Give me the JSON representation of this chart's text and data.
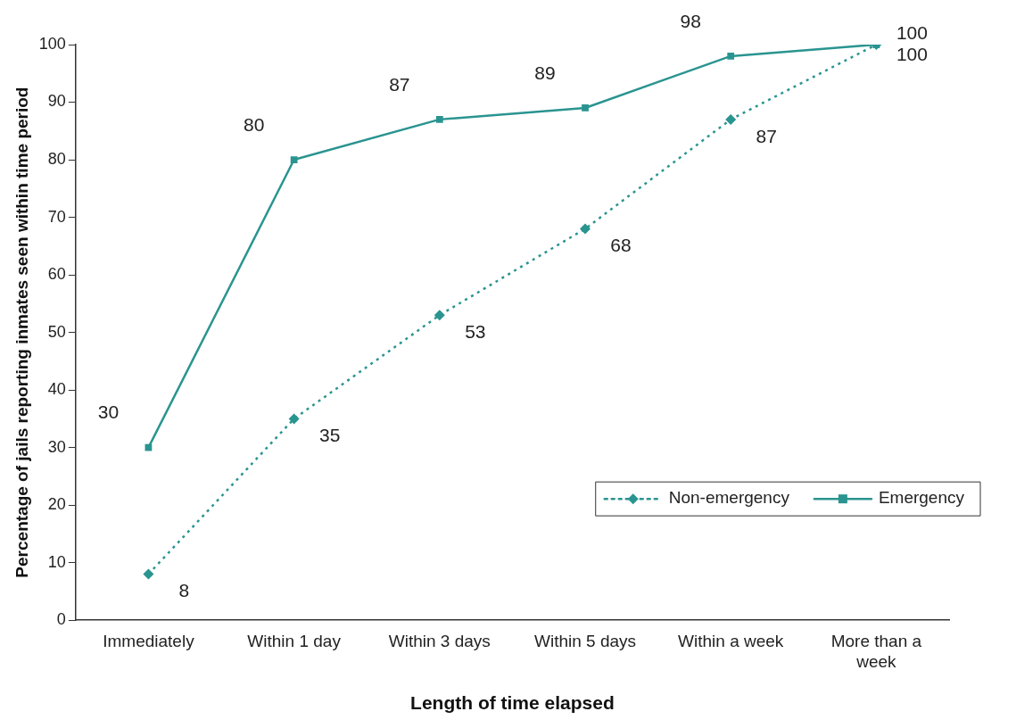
{
  "chart_data": {
    "type": "line",
    "xlabel": "Length of time elapsed",
    "ylabel": "Percentage of jails reporting inmates seen within time period",
    "categories": [
      "Immediately",
      "Within 1 day",
      "Within 3 days",
      "Within 5 days",
      "Within a week",
      "More than a week"
    ],
    "series": [
      {
        "name": "Non-emergency",
        "color": "#2a9490",
        "values": [
          8,
          35,
          53,
          68,
          87,
          100
        ],
        "marker": "diamond",
        "line_style": "dotted"
      },
      {
        "name": "Emergency",
        "color": "#2a9490",
        "values": [
          30,
          80,
          87,
          89,
          98,
          100
        ],
        "marker": "square",
        "line_style": "solid"
      }
    ],
    "ylim": [
      0,
      100
    ],
    "yticks": [
      0,
      10,
      20,
      30,
      40,
      50,
      60,
      70,
      80,
      90,
      100
    ],
    "grid": false,
    "legend": "bottom right",
    "data_labels": true
  }
}
